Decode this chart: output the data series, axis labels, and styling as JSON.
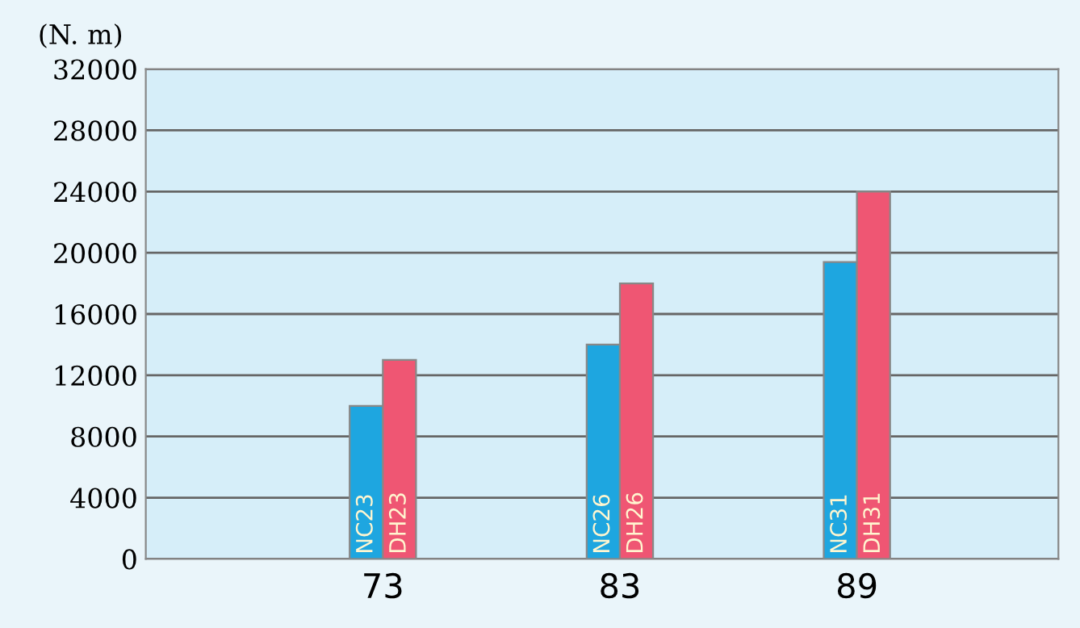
{
  "chart_data": {
    "type": "bar",
    "ylabel": "(N. m)",
    "categories": [
      "73",
      "83",
      "89"
    ],
    "series": [
      {
        "color": "#1ea6e0",
        "values": [
          10000,
          14000,
          19400
        ]
      },
      {
        "color": "#ef5673",
        "values": [
          13000,
          18000,
          24000
        ]
      }
    ],
    "annotations": [
      {
        "text": "NC23",
        "x": "73",
        "y": 0
      },
      {
        "text": "DH23",
        "x": "73",
        "y": 0
      },
      {
        "text": "NC26",
        "x": "83",
        "y": 0
      },
      {
        "text": "DH26",
        "x": "83",
        "y": 0
      },
      {
        "text": "NC31",
        "x": "89",
        "y": 0
      },
      {
        "text": "DH31",
        "x": "89",
        "y": 0
      }
    ],
    "ylim": [
      0,
      32000
    ],
    "yticks": [
      0,
      4000,
      8000,
      12000,
      16000,
      20000,
      24000,
      28000,
      32000
    ],
    "grid": "y",
    "legend": false
  }
}
